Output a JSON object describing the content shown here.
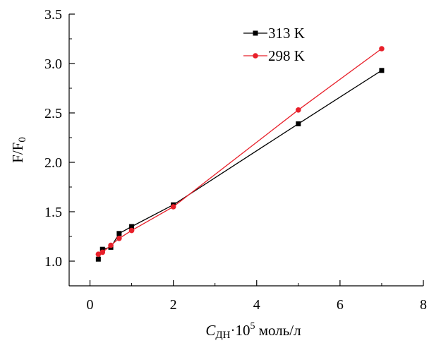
{
  "chart_data": {
    "type": "line",
    "title": "",
    "xlabel": {
      "main": "C",
      "sub": "ДН",
      "mid": "·10",
      "sup": "5",
      "unit": " моль/л"
    },
    "ylabel": {
      "main": "F/F",
      "sub": "0"
    },
    "xlim": [
      -0.5,
      8
    ],
    "ylim": [
      0.75,
      3.5
    ],
    "xticks": [
      0,
      2,
      4,
      6,
      8
    ],
    "xtick_labels": [
      "0",
      "2",
      "4",
      "6",
      "8"
    ],
    "yticks": [
      1.0,
      1.5,
      2.0,
      2.5,
      3.0,
      3.5
    ],
    "ytick_labels": [
      "1.0",
      "1.5",
      "2.0",
      "2.5",
      "3.0",
      "3.5"
    ],
    "grid": false,
    "legend_position": "top-right",
    "series": [
      {
        "name": "313 K",
        "color": "#000000",
        "marker": "square",
        "x": [
          0.2,
          0.3,
          0.5,
          0.7,
          1.0,
          2.0,
          5.0,
          7.0
        ],
        "y": [
          1.02,
          1.12,
          1.14,
          1.28,
          1.35,
          1.57,
          2.39,
          2.93
        ]
      },
      {
        "name": "298 K",
        "color": "#e8202a",
        "marker": "circle",
        "x": [
          0.2,
          0.3,
          0.5,
          0.7,
          1.0,
          2.0,
          5.0,
          7.0
        ],
        "y": [
          1.07,
          1.09,
          1.16,
          1.23,
          1.31,
          1.55,
          2.53,
          3.15
        ]
      }
    ]
  }
}
